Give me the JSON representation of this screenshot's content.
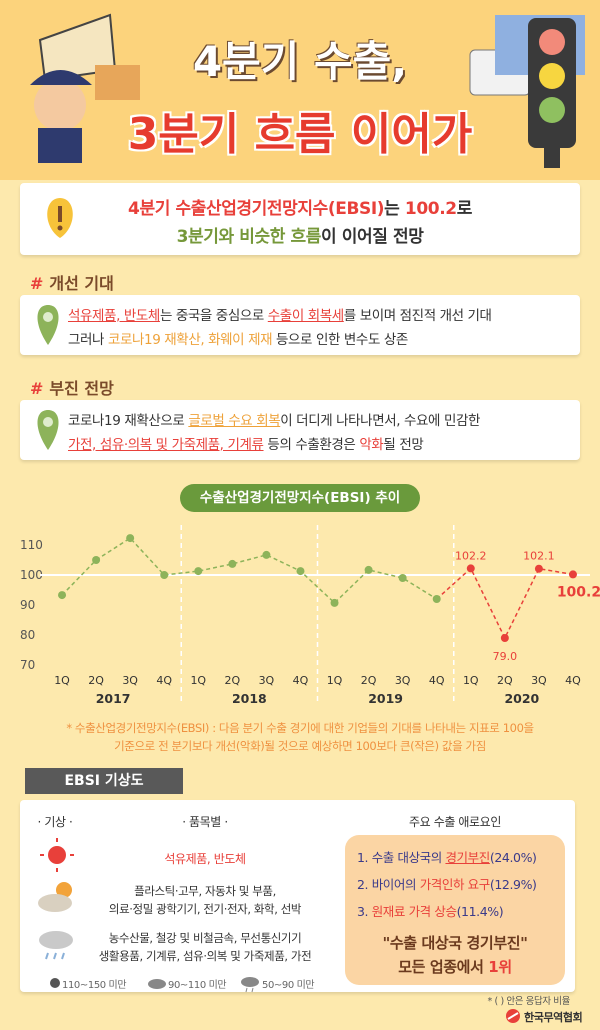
{
  "header": {
    "title": [
      "4분기 수출,",
      "3분기 흐름 이어가"
    ]
  },
  "summary": {
    "lines": [
      [
        "4분기 수출산업경기전망지수(EBSI)",
        "는 ",
        "100.2",
        "로"
      ],
      [
        "3분기와 비슷한 흐름",
        "이 이어질 전망"
      ]
    ]
  },
  "sections": [
    {
      "heading": [
        "#",
        "개선 기대"
      ],
      "lines": [
        [
          "석유제품, 반도체",
          "는 중국을 중심으로 ",
          "수출이 회복세",
          "를 보이며 점진적 개선 기대"
        ],
        [
          "그러나 ",
          "코로나19 재확산, 화웨이 제재",
          " 등으로 인한 변수도 상존"
        ]
      ]
    },
    {
      "heading": [
        "#",
        "부진 전망"
      ],
      "lines": [
        [
          "코로나19 재확산으로 ",
          "글로벌 수요 회복",
          "이 더디게 나타나면서, 수요에 민감한"
        ],
        [
          "가전, 섬유·의복 및 가죽제품, 기계류",
          " 등의 수출환경은 ",
          "악화",
          "될 전망"
        ]
      ]
    }
  ],
  "chart": {
    "type": "line",
    "title": "수출산업경기전망지수(EBSI) 추이",
    "categories": [
      "1Q",
      "2Q",
      "3Q",
      "4Q",
      "1Q",
      "2Q",
      "3Q",
      "4Q",
      "1Q",
      "2Q",
      "3Q",
      "4Q",
      "1Q",
      "2Q",
      "3Q",
      "4Q"
    ],
    "groups": [
      "2017",
      "2018",
      "2019",
      "2020"
    ],
    "values": [
      93.3,
      105,
      112.3,
      100,
      101.3,
      103.7,
      106.7,
      101.3,
      90.7,
      101.7,
      99,
      92,
      102.2,
      79.0,
      102.1,
      100.2
    ],
    "value_labels": [
      null,
      null,
      null,
      null,
      null,
      null,
      null,
      null,
      null,
      null,
      null,
      null,
      "102.2",
      "79.0",
      "102.1",
      "100.2"
    ],
    "color": "#8db35a",
    "highlight_color": "#e8403a",
    "ylim": [
      68,
      114
    ],
    "yticks": [
      70,
      80,
      90,
      100,
      110
    ],
    "reference_line": 100
  },
  "footnote": [
    "* 수출산업경기전망지수(EBSI) : 다음 분기 수출 경기에 대한 기업들의 기대를 나타내는 지표로 100을",
    "기준으로 전 분기보다 개선(악화)될 것으로 예상하면 100보다 큰(작은) 값을 가짐"
  ],
  "forecast": {
    "tab": "EBSI 기상도",
    "headers": [
      "· 기상 ·",
      "· 품목별 ·",
      "주요 수출 애로요인"
    ],
    "rows": [
      [
        "석유제품, 반도체"
      ],
      [
        "플라스틱·고무, 자동차 및 부품,",
        "의료·정밀 광학기기, 전기·전자, 화학, 선박"
      ],
      [
        "농수산물, 철강 및 비철금속, 무선통신기기",
        "생활용품, 기계류, 섬유·의복 및 가죽제품, 가전"
      ]
    ],
    "legend": [
      "110~150 미만",
      "90~110 미만",
      "50~90 미만"
    ],
    "factors": [
      [
        "1. 수출 대상국의 ",
        "경기부진",
        "(24.0%)"
      ],
      [
        "2. 바이어의 ",
        "가격인하 요구",
        "(12.9%)"
      ],
      [
        "3. ",
        "원재료 가격 상승",
        "(11.4%)"
      ]
    ],
    "conclusion": [
      "\"수출 대상국 경기부진\"",
      "모든 업종에서 ",
      "1위"
    ]
  },
  "footer": {
    "note": "* ( ) 안은 응답자 비율",
    "logo": "한국무역협회"
  }
}
